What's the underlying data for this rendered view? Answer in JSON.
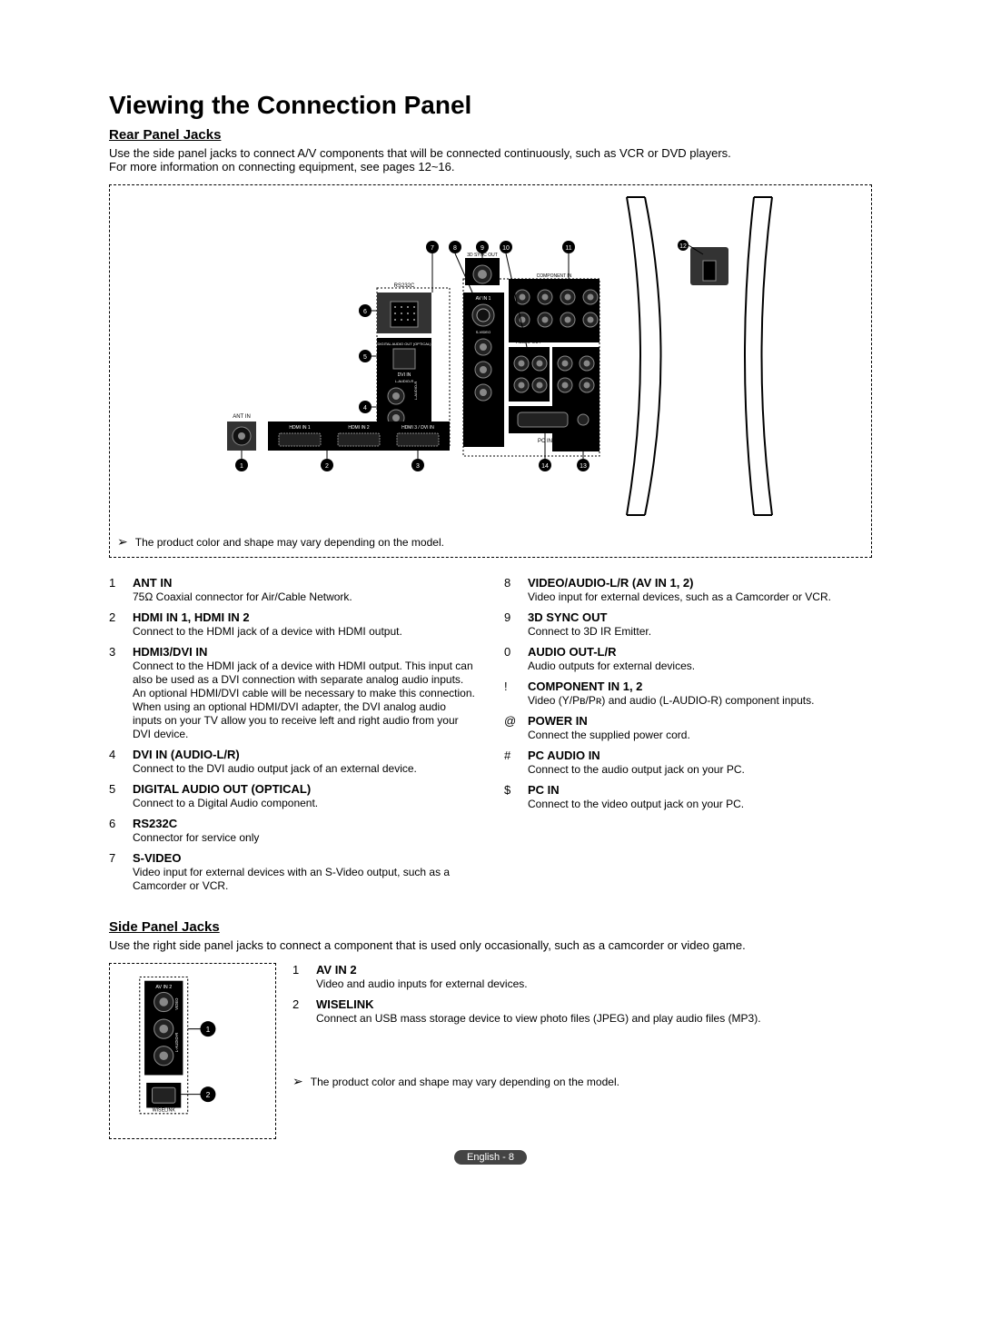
{
  "title": "Viewing the Connection Panel",
  "rear": {
    "heading": "Rear Panel Jacks",
    "intro1": "Use the side panel jacks to connect A/V components that will be connected continuously, such as VCR or DVD players.",
    "intro2": "For more information on connecting equipment, see pages 12~16.",
    "note": "The product color and shape may vary depending on the model.",
    "diagramLabels": {
      "antin": "ANT IN",
      "rs232c": "RS232C",
      "hdmi1": "HDMI IN 1",
      "hdmi2": "HDMI IN 2",
      "hdmi3": "HDMI 3 / DVI IN",
      "pcin": "PC IN",
      "audio": "AUDIO",
      "componentin": "COMPONENT IN",
      "syncout": "3D SYNC OUT",
      "audioout": "AUDIO OUT",
      "digitalaudio": "DIGITAL AUDIO OUT (OPTICAL)",
      "svideo": "S-VIDEO",
      "dviin": "DVI IN",
      "avin1": "AV IN 1",
      "laudio": "L-AUDIO-R"
    },
    "leftItems": [
      {
        "num": "1",
        "title": "ANT IN",
        "desc": "75Ω Coaxial connector for Air/Cable Network."
      },
      {
        "num": "2",
        "title": "HDMI IN 1, HDMI IN 2",
        "desc": "Connect to the HDMI jack of a device with HDMI output."
      },
      {
        "num": "3",
        "title": "HDMI3/DVI IN",
        "desc": "Connect to the HDMI jack of a device with HDMI output. This input can also be used as a DVI connection with separate analog audio inputs. An optional HDMI/DVI cable will be necessary to make this connection. When using an optional HDMI/DVI adapter, the DVI analog audio inputs on your TV allow you to receive left and right audio from your DVI device."
      },
      {
        "num": "4",
        "title": "DVI IN (AUDIO-L/R)",
        "desc": "Connect to the DVI audio output jack of an external device."
      },
      {
        "num": "5",
        "title": "DIGITAL AUDIO OUT (OPTICAL)",
        "desc": "Connect to a Digital Audio component."
      },
      {
        "num": "6",
        "title": "RS232C",
        "desc": "Connector for service only"
      },
      {
        "num": "7",
        "title": "S-VIDEO",
        "desc": "Video input for external devices with an S-Video output, such as a Camcorder or VCR."
      }
    ],
    "rightItems": [
      {
        "num": "8",
        "title": "VIDEO/AUDIO-L/R (AV IN 1, 2)",
        "desc": "Video input for external devices, such as a Camcorder or VCR."
      },
      {
        "num": "9",
        "title": "3D SYNC OUT",
        "desc": "Connect to 3D IR Emitter."
      },
      {
        "num": "0",
        "title": "AUDIO OUT-L/R",
        "desc": "Audio outputs for external devices."
      },
      {
        "num": "!",
        "title": "COMPONENT IN 1, 2",
        "desc": "Video (Y/Pʙ/Pʀ) and audio (L-AUDIO-R) component inputs."
      },
      {
        "num": "@",
        "title": "POWER IN",
        "desc": "Connect the supplied power cord."
      },
      {
        "num": "#",
        "title": "PC AUDIO IN",
        "desc": "Connect to the audio output jack on your PC."
      },
      {
        "num": "$",
        "title": "PC IN",
        "desc": "Connect to the video output jack on your PC."
      }
    ]
  },
  "side": {
    "heading": "Side Panel Jacks",
    "intro": "Use the right side panel jacks to connect a component that is used only occasionally, such as a camcorder or video game.",
    "items": [
      {
        "num": "1",
        "title": "AV IN 2",
        "desc": "Video and audio inputs for external devices."
      },
      {
        "num": "2",
        "title": "WISELINK",
        "desc": "Connect an USB mass storage device to view photo files (JPEG) and play audio files (MP3)."
      }
    ],
    "note": "The product color and shape may vary depending on the model.",
    "diagramLabels": {
      "avin2": "AV IN 2",
      "video": "VIDEO",
      "laudior": "L-AUDIO-R",
      "wiselink": "WISELINK"
    }
  },
  "footer": "English - 8",
  "colors": {
    "black": "#000000",
    "darkgrey": "#333333",
    "white": "#ffffff",
    "grey": "#444444"
  }
}
